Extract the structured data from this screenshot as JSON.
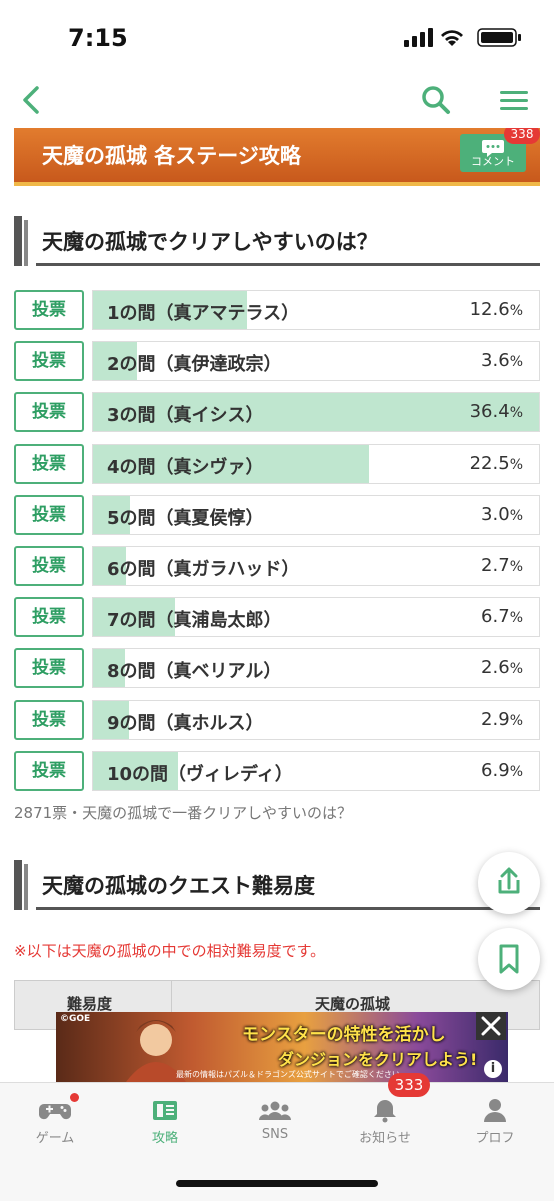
{
  "status": {
    "time": "7:15"
  },
  "header": {
    "back_icon": "chevron-left-icon",
    "search_icon": "search-icon",
    "menu_icon": "hamburger-menu-icon"
  },
  "banner": {
    "title": "天魔の孤城 各ステージ攻略",
    "comment_label": "コメント",
    "comment_count": "338"
  },
  "poll": {
    "title": "天魔の孤城でクリアしやすいのは？",
    "vote_label": "投票",
    "options": [
      {
        "label": "1の間（真アマテラス）",
        "percent": "12.6",
        "value": 12.6
      },
      {
        "label": "2の間（真伊達政宗）",
        "percent": "3.6",
        "value": 3.6
      },
      {
        "label": "3の間（真イシス）",
        "percent": "36.4",
        "value": 36.4
      },
      {
        "label": "4の間（真シヴァ）",
        "percent": "22.5",
        "value": 22.5
      },
      {
        "label": "5の間（真夏侯惇）",
        "percent": "3.0",
        "value": 3.0
      },
      {
        "label": "6の間（真ガラハッド）",
        "percent": "2.7",
        "value": 2.7
      },
      {
        "label": "7の間（真浦島太郎）",
        "percent": "6.7",
        "value": 6.7
      },
      {
        "label": "8の間（真ベリアル）",
        "percent": "2.6",
        "value": 2.6
      },
      {
        "label": "9の間（真ホルス）",
        "percent": "2.9",
        "value": 2.9
      },
      {
        "label": "10の間（ヴィレディ）",
        "percent": "6.9",
        "value": 6.9
      }
    ],
    "footer": "2871票・天魔の孤城で一番クリアしやすいのは？"
  },
  "difficulty": {
    "title": "天魔の孤城のクエスト難易度",
    "note": "※以下は天魔の孤城の中での相対難易度です。",
    "col1": "難易度",
    "col2": "天魔の孤城"
  },
  "ad": {
    "logo": "©GOE",
    "line1": "モンスターの特性を活かし",
    "line2": "ダンジョンをクリアしよう!",
    "fine": "最新の情報はパズル＆ドラゴンズ公式サイトでご確認ください。",
    "info": "i"
  },
  "tabs": [
    {
      "label": "ゲーム",
      "icon": "gamepad-icon"
    },
    {
      "label": "攻略",
      "icon": "guide-book-icon",
      "active": true
    },
    {
      "label": "SNS",
      "icon": "people-icon"
    },
    {
      "label": "お知らせ",
      "icon": "bell-icon",
      "badge": "333"
    },
    {
      "label": "プロフ",
      "icon": "profile-icon"
    }
  ],
  "colors": {
    "accent": "#4db07a",
    "bar": "#bfe6cf",
    "banner": "#d96a24",
    "alert": "#e53935"
  }
}
